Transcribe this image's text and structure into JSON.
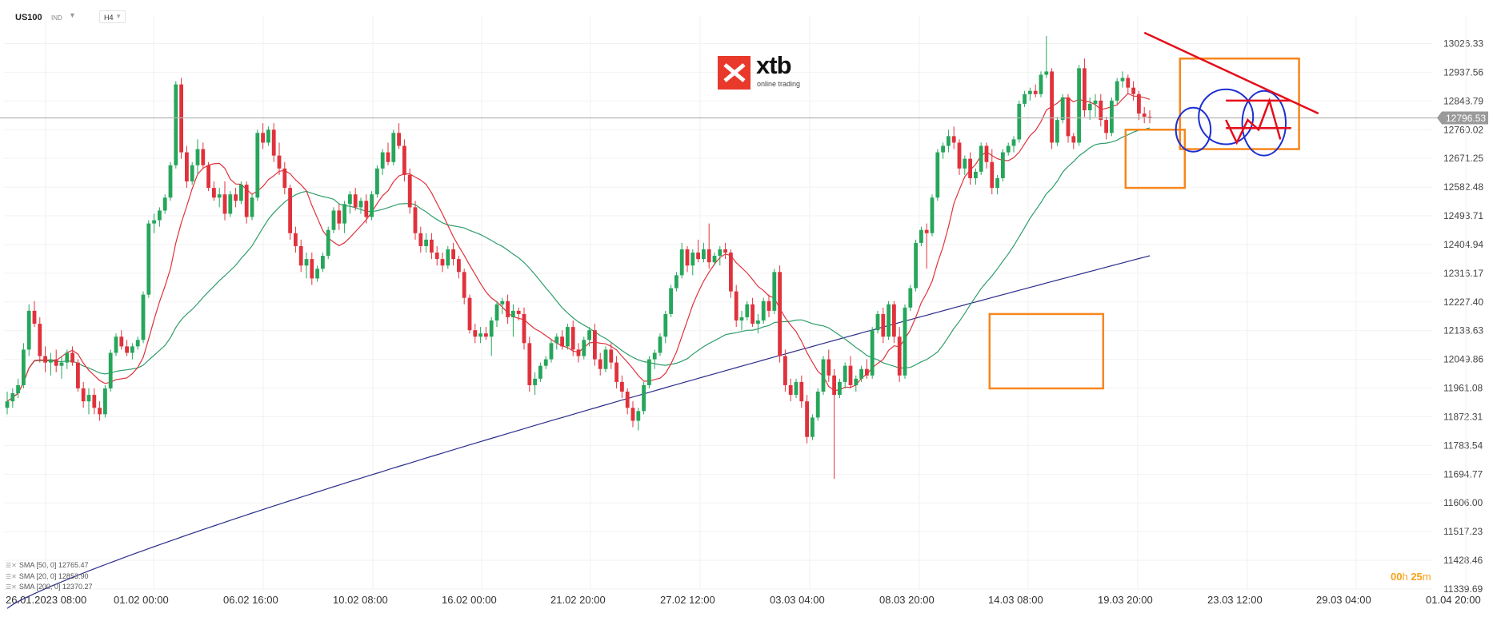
{
  "header": {
    "symbol": "US100",
    "instrument_type": "IND",
    "timeframe": "H4"
  },
  "logo": {
    "word": "xtb",
    "tagline": "online trading"
  },
  "legend": [
    {
      "label": "SMA  [50, 0]",
      "value": "12765.47"
    },
    {
      "label": "SMA  [20, 0]",
      "value": "12853.90"
    },
    {
      "label": "SMA  [200, 0]",
      "value": "12370.27"
    }
  ],
  "countdown": {
    "hours": "00",
    "h_unit": "h",
    "minutes": "25",
    "m_unit": "m"
  },
  "colors": {
    "up": "#26a65b",
    "down": "#e0323c",
    "sma20": "#e0323c",
    "sma50": "#2e9e6a",
    "sma200": "#2b2d8a",
    "box": "#f7861d",
    "circle": "#1c2fd1",
    "trend": "#e50d1b",
    "grid": "#f2f2f2",
    "price_tag": "#9a9a9a"
  },
  "chart_data": {
    "type": "candlestick",
    "instrument": "US100",
    "timeframe": "H4",
    "current_price": 12796.53,
    "ylim": [
      11339.69,
      13026.33
    ],
    "y_ticks": [
      "13026.33",
      "12937.56",
      "12848.79",
      "12760.02",
      "12671.25",
      "12582.48",
      "12493.71",
      "12404.94",
      "12316.17",
      "12227.40",
      "12138.63",
      "12049.86",
      "11961.08",
      "11872.31",
      "11783.54",
      "11694.77",
      "11606.00",
      "11517.23",
      "11428.46",
      "11339.69"
    ],
    "x_ticks": [
      "26.01.2023  08:00",
      "01.02  00:00",
      "06.02  16:00",
      "10.02  08:00",
      "16.02  00:00",
      "21.02  20:00",
      "27.02  12:00",
      "03.03  04:00",
      "08.03  20:00",
      "14.03  08:00",
      "19.03  20:00",
      "23.03  12:00",
      "29.03  04:00",
      "01.04  20:00"
    ],
    "candles_ohlc": [
      [
        11900,
        11950,
        11880,
        11920
      ],
      [
        11920,
        11960,
        11900,
        11945
      ],
      [
        11945,
        11990,
        11930,
        11970
      ],
      [
        11970,
        12100,
        11960,
        12080
      ],
      [
        12080,
        12220,
        12060,
        12200
      ],
      [
        12200,
        12230,
        12150,
        12160
      ],
      [
        12160,
        12180,
        12040,
        12060
      ],
      [
        12060,
        12090,
        12010,
        12040
      ],
      [
        12040,
        12070,
        12000,
        12050
      ],
      [
        12050,
        12080,
        12010,
        12030
      ],
      [
        12030,
        12060,
        11990,
        12040
      ],
      [
        12040,
        12080,
        12020,
        12070
      ],
      [
        12070,
        12090,
        12030,
        12040
      ],
      [
        12040,
        12050,
        11950,
        11960
      ],
      [
        11960,
        11980,
        11900,
        11920
      ],
      [
        11920,
        11960,
        11880,
        11940
      ],
      [
        11940,
        11960,
        11880,
        11900
      ],
      [
        11900,
        11920,
        11860,
        11880
      ],
      [
        11880,
        11970,
        11870,
        11960
      ],
      [
        11960,
        12080,
        11950,
        12070
      ],
      [
        12070,
        12130,
        12060,
        12120
      ],
      [
        12120,
        12140,
        12080,
        12090
      ],
      [
        12090,
        12110,
        12060,
        12070
      ],
      [
        12070,
        12100,
        12050,
        12090
      ],
      [
        12090,
        12120,
        12080,
        12110
      ],
      [
        12110,
        12260,
        12100,
        12250
      ],
      [
        12250,
        12480,
        12240,
        12470
      ],
      [
        12470,
        12500,
        12440,
        12480
      ],
      [
        12480,
        12520,
        12460,
        12510
      ],
      [
        12510,
        12560,
        12500,
        12550
      ],
      [
        12550,
        12660,
        12540,
        12650
      ],
      [
        12650,
        12910,
        12640,
        12900
      ],
      [
        12900,
        12920,
        12670,
        12690
      ],
      [
        12690,
        12710,
        12580,
        12600
      ],
      [
        12600,
        12660,
        12590,
        12650
      ],
      [
        12650,
        12730,
        12620,
        12700
      ],
      [
        12700,
        12720,
        12640,
        12650
      ],
      [
        12650,
        12660,
        12570,
        12580
      ],
      [
        12580,
        12600,
        12540,
        12550
      ],
      [
        12550,
        12580,
        12520,
        12560
      ],
      [
        12560,
        12600,
        12480,
        12500
      ],
      [
        12500,
        12570,
        12490,
        12560
      ],
      [
        12560,
        12580,
        12520,
        12540
      ],
      [
        12540,
        12600,
        12530,
        12590
      ],
      [
        12590,
        12600,
        12470,
        12490
      ],
      [
        12490,
        12560,
        12480,
        12550
      ],
      [
        12550,
        12760,
        12540,
        12750
      ],
      [
        12750,
        12780,
        12700,
        12720
      ],
      [
        12720,
        12770,
        12710,
        12760
      ],
      [
        12760,
        12780,
        12660,
        12680
      ],
      [
        12680,
        12720,
        12620,
        12640
      ],
      [
        12640,
        12660,
        12560,
        12580
      ],
      [
        12580,
        12590,
        12420,
        12440
      ],
      [
        12440,
        12460,
        12380,
        12400
      ],
      [
        12400,
        12420,
        12320,
        12340
      ],
      [
        12340,
        12380,
        12300,
        12360
      ],
      [
        12360,
        12380,
        12280,
        12300
      ],
      [
        12300,
        12340,
        12290,
        12330
      ],
      [
        12330,
        12380,
        12320,
        12370
      ],
      [
        12370,
        12460,
        12360,
        12450
      ],
      [
        12450,
        12520,
        12440,
        12510
      ],
      [
        12510,
        12530,
        12450,
        12470
      ],
      [
        12470,
        12540,
        12440,
        12530
      ],
      [
        12530,
        12570,
        12500,
        12560
      ],
      [
        12560,
        12580,
        12510,
        12520
      ],
      [
        12520,
        12550,
        12500,
        12540
      ],
      [
        12540,
        12560,
        12470,
        12490
      ],
      [
        12490,
        12570,
        12480,
        12560
      ],
      [
        12560,
        12650,
        12550,
        12640
      ],
      [
        12640,
        12700,
        12620,
        12690
      ],
      [
        12690,
        12720,
        12650,
        12660
      ],
      [
        12660,
        12760,
        12650,
        12750
      ],
      [
        12750,
        12780,
        12700,
        12710
      ],
      [
        12710,
        12730,
        12600,
        12620
      ],
      [
        12620,
        12640,
        12500,
        12520
      ],
      [
        12520,
        12540,
        12420,
        12440
      ],
      [
        12440,
        12460,
        12380,
        12400
      ],
      [
        12400,
        12440,
        12380,
        12420
      ],
      [
        12420,
        12440,
        12360,
        12380
      ],
      [
        12380,
        12400,
        12340,
        12360
      ],
      [
        12360,
        12380,
        12320,
        12340
      ],
      [
        12340,
        12400,
        12330,
        12390
      ],
      [
        12390,
        12410,
        12340,
        12360
      ],
      [
        12360,
        12370,
        12300,
        12320
      ],
      [
        12320,
        12330,
        12220,
        12240
      ],
      [
        12240,
        12250,
        12130,
        12140
      ],
      [
        12140,
        12160,
        12100,
        12120
      ],
      [
        12120,
        12150,
        12100,
        12130
      ],
      [
        12130,
        12150,
        12110,
        12120
      ],
      [
        12120,
        12180,
        12060,
        12170
      ],
      [
        12170,
        12230,
        12150,
        12220
      ],
      [
        12220,
        12240,
        12190,
        12230
      ],
      [
        12230,
        12250,
        12160,
        12180
      ],
      [
        12180,
        12220,
        12120,
        12200
      ],
      [
        12200,
        12210,
        12170,
        12190
      ],
      [
        12190,
        12210,
        12080,
        12100
      ],
      [
        12100,
        12120,
        11950,
        11970
      ],
      [
        11970,
        12010,
        11940,
        11990
      ],
      [
        11990,
        12040,
        11980,
        12030
      ],
      [
        12030,
        12060,
        12020,
        12050
      ],
      [
        12050,
        12110,
        12040,
        12100
      ],
      [
        12100,
        12130,
        12080,
        12120
      ],
      [
        12120,
        12140,
        12080,
        12090
      ],
      [
        12090,
        12160,
        12080,
        12150
      ],
      [
        12150,
        12170,
        12060,
        12080
      ],
      [
        12080,
        12100,
        12040,
        12060
      ],
      [
        12060,
        12120,
        12050,
        12110
      ],
      [
        12110,
        12150,
        12090,
        12140
      ],
      [
        12140,
        12160,
        12030,
        12050
      ],
      [
        12050,
        12070,
        12000,
        12020
      ],
      [
        12020,
        12090,
        12010,
        12080
      ],
      [
        12080,
        12100,
        12020,
        12040
      ],
      [
        12040,
        12060,
        11960,
        11980
      ],
      [
        11980,
        12000,
        11930,
        11950
      ],
      [
        11950,
        11960,
        11880,
        11900
      ],
      [
        11900,
        11920,
        11840,
        11860
      ],
      [
        11860,
        11900,
        11830,
        11890
      ],
      [
        11890,
        11980,
        11880,
        11970
      ],
      [
        11970,
        12060,
        11960,
        12050
      ],
      [
        12050,
        12080,
        12020,
        12070
      ],
      [
        12070,
        12130,
        12060,
        12120
      ],
      [
        12120,
        12200,
        12100,
        12190
      ],
      [
        12190,
        12280,
        12180,
        12270
      ],
      [
        12270,
        12320,
        12260,
        12310
      ],
      [
        12310,
        12410,
        12300,
        12390
      ],
      [
        12390,
        12400,
        12320,
        12340
      ],
      [
        12340,
        12390,
        12310,
        12380
      ],
      [
        12380,
        12420,
        12350,
        12360
      ],
      [
        12360,
        12410,
        12350,
        12390
      ],
      [
        12390,
        12470,
        12330,
        12350
      ],
      [
        12350,
        12380,
        12340,
        12370
      ],
      [
        12370,
        12400,
        12340,
        12390
      ],
      [
        12390,
        12410,
        12360,
        12380
      ],
      [
        12380,
        12390,
        12240,
        12260
      ],
      [
        12260,
        12280,
        12150,
        12170
      ],
      [
        12170,
        12200,
        12140,
        12180
      ],
      [
        12180,
        12230,
        12170,
        12220
      ],
      [
        12220,
        12240,
        12150,
        12160
      ],
      [
        12160,
        12190,
        12130,
        12170
      ],
      [
        12170,
        12240,
        12160,
        12230
      ],
      [
        12230,
        12250,
        12180,
        12200
      ],
      [
        12200,
        12330,
        12190,
        12320
      ],
      [
        12320,
        12340,
        12040,
        12060
      ],
      [
        12060,
        12080,
        11950,
        11970
      ],
      [
        11970,
        11990,
        11920,
        11940
      ],
      [
        11940,
        11990,
        11930,
        11980
      ],
      [
        11980,
        12000,
        11900,
        11920
      ],
      [
        11920,
        11940,
        11790,
        11810
      ],
      [
        11810,
        11880,
        11800,
        11870
      ],
      [
        11870,
        11960,
        11860,
        11950
      ],
      [
        11950,
        12060,
        11940,
        12050
      ],
      [
        12050,
        12080,
        11980,
        12000
      ],
      [
        12000,
        12020,
        11680,
        11940
      ],
      [
        11940,
        11990,
        11930,
        11980
      ],
      [
        11980,
        12040,
        11960,
        12030
      ],
      [
        12030,
        12060,
        11960,
        11970
      ],
      [
        11970,
        12000,
        11950,
        11990
      ],
      [
        11990,
        12030,
        11980,
        12020
      ],
      [
        12020,
        12050,
        11990,
        12000
      ],
      [
        12000,
        12150,
        11990,
        12140
      ],
      [
        12140,
        12200,
        12130,
        12190
      ],
      [
        12190,
        12210,
        12100,
        12120
      ],
      [
        12120,
        12230,
        12110,
        12220
      ],
      [
        12220,
        12230,
        12100,
        12120
      ],
      [
        12120,
        12150,
        11980,
        12000
      ],
      [
        12000,
        12220,
        11990,
        12210
      ],
      [
        12210,
        12280,
        12200,
        12270
      ],
      [
        12270,
        12420,
        12260,
        12410
      ],
      [
        12410,
        12460,
        12400,
        12450
      ],
      [
        12450,
        12470,
        12330,
        12440
      ],
      [
        12440,
        12560,
        12430,
        12550
      ],
      [
        12550,
        12700,
        12540,
        12690
      ],
      [
        12690,
        12720,
        12670,
        12710
      ],
      [
        12710,
        12760,
        12690,
        12740
      ],
      [
        12740,
        12770,
        12700,
        12720
      ],
      [
        12720,
        12730,
        12620,
        12640
      ],
      [
        12640,
        12680,
        12620,
        12670
      ],
      [
        12670,
        12690,
        12590,
        12610
      ],
      [
        12610,
        12640,
        12590,
        12630
      ],
      [
        12630,
        12720,
        12620,
        12710
      ],
      [
        12710,
        12720,
        12640,
        12660
      ],
      [
        12660,
        12700,
        12560,
        12580
      ],
      [
        12580,
        12620,
        12560,
        12610
      ],
      [
        12610,
        12700,
        12600,
        12690
      ],
      [
        12690,
        12720,
        12680,
        12710
      ],
      [
        12710,
        12740,
        12690,
        12730
      ],
      [
        12730,
        12850,
        12720,
        12840
      ],
      [
        12840,
        12880,
        12830,
        12870
      ],
      [
        12870,
        12890,
        12850,
        12880
      ],
      [
        12880,
        12900,
        12860,
        12870
      ],
      [
        12870,
        12940,
        12860,
        12930
      ],
      [
        12930,
        13050,
        12920,
        12940
      ],
      [
        12940,
        12950,
        12700,
        12720
      ],
      [
        12720,
        12800,
        12710,
        12790
      ],
      [
        12790,
        12870,
        12780,
        12860
      ],
      [
        12860,
        12870,
        12720,
        12740
      ],
      [
        12740,
        12750,
        12700,
        12720
      ],
      [
        12720,
        12960,
        12710,
        12950
      ],
      [
        12950,
        12980,
        12800,
        12820
      ],
      [
        12820,
        12860,
        12790,
        12840
      ],
      [
        12840,
        12870,
        12800,
        12850
      ],
      [
        12850,
        12870,
        12770,
        12790
      ],
      [
        12790,
        12800,
        12730,
        12750
      ],
      [
        12750,
        12860,
        12740,
        12850
      ],
      [
        12850,
        12920,
        12840,
        12910
      ],
      [
        12910,
        12940,
        12890,
        12920
      ],
      [
        12920,
        12930,
        12870,
        12890
      ],
      [
        12890,
        12910,
        12850,
        12870
      ],
      [
        12870,
        12880,
        12790,
        12810
      ],
      [
        12810,
        12830,
        12780,
        12800
      ],
      [
        12800,
        12820,
        12780,
        12797
      ]
    ],
    "series": [
      {
        "name": "SMA  [20, 0]",
        "last": 12853.9
      },
      {
        "name": "SMA  [50, 0]",
        "last": 12765.47
      },
      {
        "name": "SMA  [200, 0]",
        "last": 12370.27
      }
    ],
    "annotations": {
      "boxes": [
        {
          "x_from": 181,
          "x_to": 201,
          "y_from": 11960,
          "y_to": 12190
        },
        {
          "x_from": 206,
          "x_to": 216,
          "y_from": 12580,
          "y_to": 12760
        },
        {
          "x_from": 216,
          "x_to": 237,
          "y_from": 12700,
          "y_to": 12980
        }
      ],
      "circles": [
        {
          "x": 218,
          "y": 12760,
          "rx_bars": 3.2,
          "ry": 68
        },
        {
          "x": 224,
          "y": 12800,
          "rx_bars": 5.0,
          "ry": 85
        },
        {
          "x": 231,
          "y": 12780,
          "rx_bars": 4.0,
          "ry": 100
        }
      ],
      "trend_lines": [
        {
          "from": [
            209,
            13060
          ],
          "to": [
            241,
            12810
          ]
        },
        {
          "from": [
            224,
            12850
          ],
          "to": [
            236,
            12850
          ]
        },
        {
          "from": [
            224,
            12765
          ],
          "to": [
            236,
            12765
          ]
        }
      ],
      "zigzag": [
        [
          224,
          12790
        ],
        [
          226,
          12720
        ],
        [
          228,
          12790
        ],
        [
          230,
          12760
        ],
        [
          232,
          12850
        ],
        [
          234,
          12730
        ]
      ]
    },
    "grid": true
  }
}
